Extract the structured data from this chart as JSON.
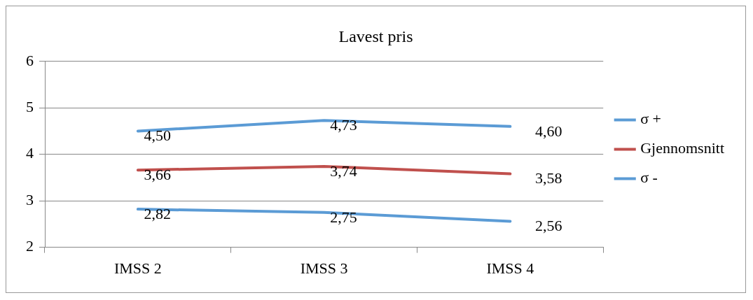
{
  "chart_data": {
    "type": "line",
    "title": "Lavest pris",
    "categories": [
      "IMSS 2",
      "IMSS 3",
      "IMSS 4"
    ],
    "series": [
      {
        "name": "σ +",
        "color": "#5b9bd5",
        "values": [
          4.5,
          4.73,
          4.6
        ],
        "value_labels": [
          "4,50",
          "4,73",
          "4,60"
        ]
      },
      {
        "name": "Gjennomsnitt",
        "color": "#c0504d",
        "values": [
          3.66,
          3.74,
          3.58
        ],
        "value_labels": [
          "3,66",
          "3,74",
          "3,58"
        ]
      },
      {
        "name": "σ -",
        "color": "#5b9bd5",
        "values": [
          2.82,
          2.75,
          2.56
        ],
        "value_labels": [
          "2,82",
          "2,75",
          "2,56"
        ]
      }
    ],
    "ylim": [
      2,
      6
    ],
    "yticks": [
      2,
      3,
      4,
      5,
      6
    ],
    "grid": "y",
    "legend": "right",
    "marker": "none",
    "line_style": "solid"
  }
}
